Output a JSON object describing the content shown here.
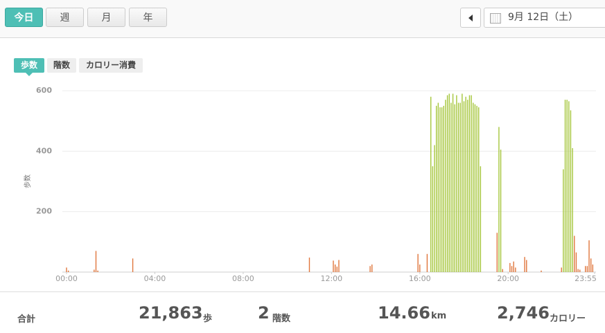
{
  "nav": {
    "periods": [
      "今日",
      "週",
      "月",
      "年"
    ],
    "date": "9月 12日（土）"
  },
  "tabs": [
    "歩数",
    "階数",
    "カロリー消費"
  ],
  "chart_data": {
    "type": "bar",
    "ylabel": "歩数",
    "xlim": [
      0,
      1435
    ],
    "xticks": [
      {
        "value": 0,
        "label": "00:00"
      },
      {
        "value": 240,
        "label": "04:00"
      },
      {
        "value": 480,
        "label": "08:00"
      },
      {
        "value": 720,
        "label": "12:00"
      },
      {
        "value": 960,
        "label": "16:00"
      },
      {
        "value": 1200,
        "label": "20:00"
      },
      {
        "value": 1435,
        "label": "23:55"
      }
    ],
    "ylim": [
      0,
      600
    ],
    "yticks": [
      200,
      400,
      600
    ],
    "grid": true,
    "series": [
      {
        "color": "#e0763c",
        "x": [
          0,
          5,
          75,
          80,
          85,
          180,
          660,
          725,
          730,
          735,
          740,
          825,
          830,
          955,
          960,
          980,
          1170,
          1185,
          1205,
          1210,
          1215,
          1220,
          1245,
          1250,
          1290,
          1345,
          1380,
          1385,
          1390,
          1395,
          1410,
          1415,
          1420,
          1425,
          1430
        ],
        "values": [
          15,
          5,
          8,
          70,
          5,
          45,
          48,
          38,
          25,
          18,
          40,
          20,
          25,
          60,
          25,
          60,
          130,
          10,
          30,
          20,
          35,
          15,
          50,
          40,
          5,
          15,
          120,
          65,
          10,
          8,
          20,
          20,
          105,
          45,
          25
        ]
      },
      {
        "color": "#a5c63b",
        "x": [
          990,
          995,
          1000,
          1005,
          1010,
          1015,
          1020,
          1025,
          1030,
          1035,
          1040,
          1045,
          1050,
          1055,
          1060,
          1065,
          1070,
          1075,
          1080,
          1085,
          1090,
          1095,
          1100,
          1105,
          1110,
          1115,
          1120,
          1125,
          1175,
          1180,
          1350,
          1355,
          1360,
          1365,
          1370,
          1375
        ],
        "values": [
          580,
          350,
          420,
          550,
          560,
          545,
          545,
          550,
          570,
          585,
          590,
          560,
          590,
          555,
          585,
          560,
          560,
          590,
          565,
          580,
          570,
          585,
          585,
          560,
          555,
          550,
          545,
          350,
          480,
          405,
          340,
          570,
          570,
          565,
          535,
          410
        ]
      }
    ]
  },
  "summary": {
    "label": "合計",
    "items": [
      {
        "value": "21,863",
        "unit": "歩"
      },
      {
        "value": "2",
        "unit": "階数"
      },
      {
        "value": "14.66",
        "unit": "km"
      },
      {
        "value": "2,746",
        "unit": "カロリー"
      }
    ]
  }
}
